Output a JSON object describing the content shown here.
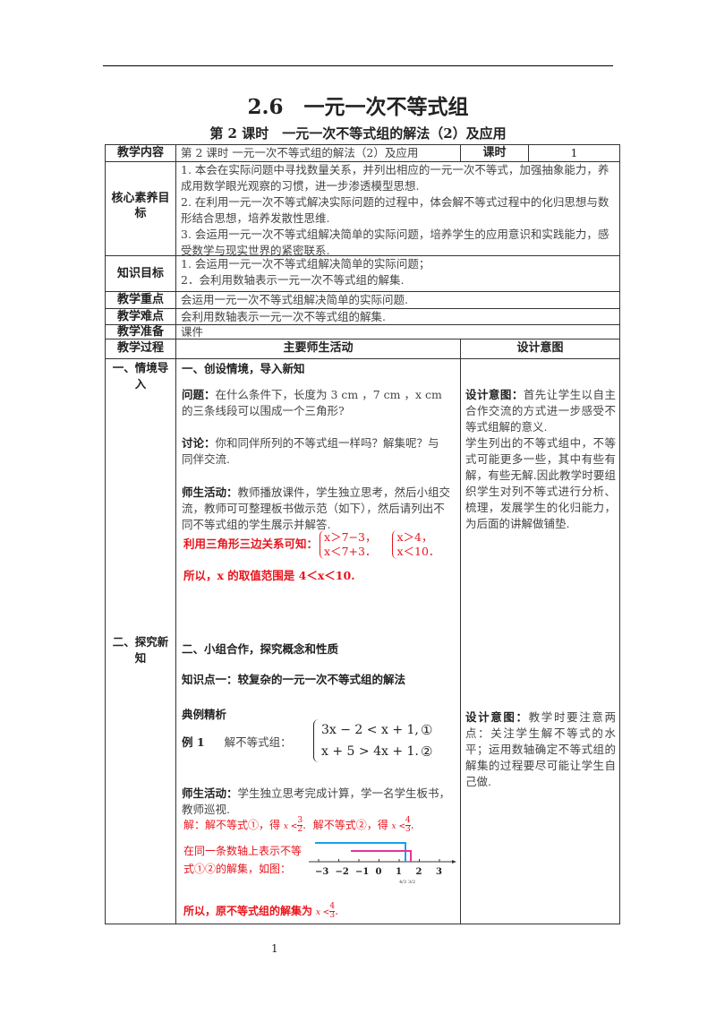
{
  "doc": {
    "title": "2.6　一元一次不等式组",
    "subtitle": "第 2 课时　一元一次不等式组的解法（2）及应用",
    "page_number": "1"
  },
  "info": {
    "content_label": "教学内容",
    "content_value": "第 2 课时 一元一次不等式组的解法（2）及应用",
    "period_label": "课时",
    "period_value": "1",
    "core_label": "核心素养目标",
    "core_items": [
      "1. 本会在实际问题中寻找数量关系，并列出相应的一元一次不等式，加强抽象能力，养成用数学眼光观察的习惯，进一步渗透模型思想.",
      "2. 在利用一元一次不等式解决实际问题的过程中，体会解不等式过程中的化归思想与数形结合思想，培养发散性思维.",
      "3. 会运用一元一次不等式组解决简单的实际问题，培养学生的应用意识和实践能力，感受数学与现实世界的紧密联系."
    ],
    "knowledge_label": "知识目标",
    "knowledge_items": [
      "1. 会运用一元一次不等式组解决简单的实际问题；",
      "2．会利用数轴表示一元一次不等式组的解集."
    ],
    "key_label": "教学重点",
    "key_value": "会运用一元一次不等式组解决简单的实际问题.",
    "difficulty_label": "教学难点",
    "difficulty_value": "会利用数轴表示一元一次不等式组的解集.",
    "prep_label": "教学准备",
    "prep_value": "课件"
  },
  "process": {
    "col1": "教学过程",
    "col2": "主要师生活动",
    "col3": "设计意图",
    "s1_label": "一、情境导入",
    "s1_heading": "一、创设情境，导入新知",
    "problem_label": "问题：",
    "problem_text": "在什么条件下，长度为 3 cm ，7 cm ，x cm 的三条线段可以围成一个三角形?",
    "discuss_label": "讨论：",
    "discuss_text": "你和同伴所列的不等式组一样吗？解集呢？与同伴交流.",
    "activity_label": "师生活动：",
    "activity_text": "教师播放课件，学生独立思考，然后小组交流，教师可可整理板书做示范（如下），然后请列出不同不等式组的学生展示并解答.",
    "red_intro": "利用三角形三边关系可知：",
    "sys1": [
      "x＞7−3，",
      "x＜7+3．"
    ],
    "sys2": [
      "x＞4，",
      "x＜10．"
    ],
    "red_conclusion": "所以，x 的取值范围是 4＜x＜10.",
    "intent1_label": "设计意图：",
    "intent1_text": "首先让学生以自主合作交流的方式进一步感受不等式组解的意义.",
    "intent1_text2": "学生列出的不等式组中，不等式可能更多一些，其中有些有解，有些无解.因此教学时要组织学生对列不等式进行分析、梳理，发展学生的化归能力，为后面的讲解做铺垫.",
    "s2_label": "二、探究新知",
    "s2_heading": "二、小组合作，探究概念和性质",
    "kp1": "知识点一：较复杂的一元一次不等式组的解法",
    "example_heading": "典例精析",
    "example_label": "例 1",
    "example_text": "解不等式组：",
    "ex_sys": [
      "3x − 2 < x + 1,",
      "x + 5 > 4x + 1."
    ],
    "ex_marks": [
      "①",
      "②"
    ],
    "activity2_label": "师生活动：",
    "activity2_text": "学生独立思考完成计算，学一名学生板书，教师巡视.",
    "sol1": "解：解不等式①，得",
    "sol1_math": "x <",
    "frac1": [
      "3",
      "2"
    ],
    "sol2": "解不等式②，得",
    "sol2_math": "x <",
    "frac2": [
      "4",
      "3"
    ],
    "axis_text": "在同一条数轴上表示不等式①②的解集，如图：",
    "axis_ticks": [
      "−3",
      "−2",
      "−1",
      "0",
      "1",
      "2",
      "3"
    ],
    "axis_small": [
      "4/3",
      "3/2"
    ],
    "final_text": "所以，原不等式组的解集为",
    "final_math": "x <",
    "frac3": [
      "4",
      "3"
    ],
    "intent2_label": "设计意图：",
    "intent2_text": "教学时要注意两点：关注学生解不等式的水平；运用数轴确定不等式组的解集的过程要尽可能让学生自己做.",
    "colors": {
      "red": "#e8141c",
      "blue": "#1a9fe8",
      "magenta": "#e8339a"
    }
  }
}
